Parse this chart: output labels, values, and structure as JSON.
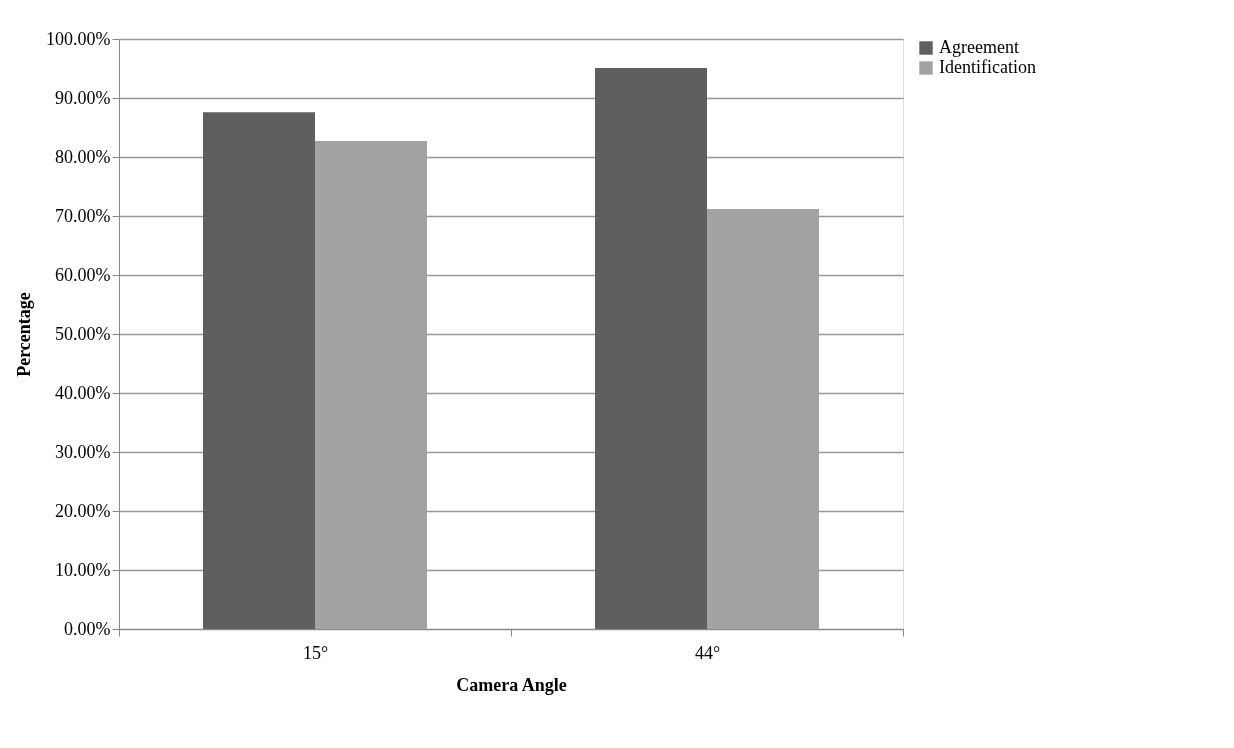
{
  "chart_data": {
    "type": "bar",
    "xlabel": "Camera Angle",
    "ylabel": "Percentage",
    "categories": [
      "15°",
      "44°"
    ],
    "series": [
      {
        "name": "Agreement",
        "color": "#5f5f5f",
        "values": [
          87.6,
          95.1
        ]
      },
      {
        "name": "Identification",
        "color": "#a3a3a3",
        "values": [
          82.7,
          71.2
        ]
      }
    ],
    "ylim": [
      0,
      100
    ],
    "yticks": [
      {
        "value": 0,
        "label": "0.00%"
      },
      {
        "value": 10,
        "label": "10.00%"
      },
      {
        "value": 20,
        "label": "20.00%"
      },
      {
        "value": 30,
        "label": "30.00%"
      },
      {
        "value": 40,
        "label": "40.00%"
      },
      {
        "value": 50,
        "label": "50.00%"
      },
      {
        "value": 60,
        "label": "60.00%"
      },
      {
        "value": 70,
        "label": "70.00%"
      },
      {
        "value": 80,
        "label": "80.00%"
      },
      {
        "value": 90,
        "label": "90.00%"
      },
      {
        "value": 100,
        "label": "100.00%"
      }
    ],
    "grid": "y",
    "legend": "right"
  }
}
